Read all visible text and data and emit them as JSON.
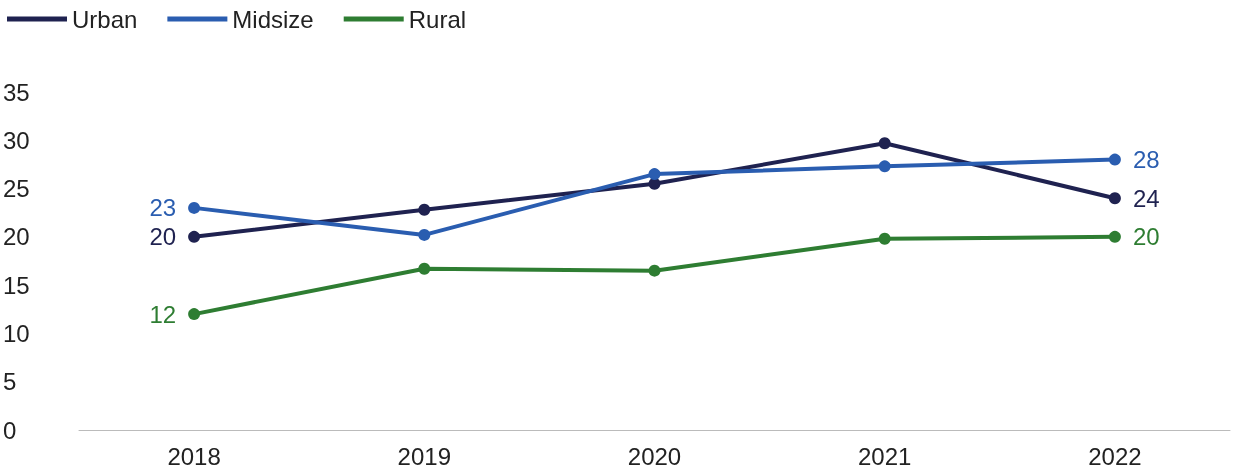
{
  "chart_data": {
    "type": "line",
    "categories": [
      "2018",
      "2019",
      "2020",
      "2021",
      "2022"
    ],
    "series": [
      {
        "name": "Urban",
        "color": "#1f2250",
        "values": [
          20,
          22.8,
          25.5,
          29.7,
          24
        ],
        "value_labels": [
          "20",
          null,
          null,
          null,
          "24"
        ]
      },
      {
        "name": "Midsize",
        "color": "#2a5db0",
        "values": [
          23,
          20.2,
          26.5,
          27.3,
          28
        ],
        "value_labels": [
          "23",
          null,
          null,
          null,
          "28"
        ]
      },
      {
        "name": "Rural",
        "color": "#2e7d32",
        "values": [
          12,
          16.7,
          16.5,
          19.8,
          20
        ],
        "value_labels": [
          "12",
          null,
          null,
          null,
          "20"
        ]
      }
    ],
    "ylim": [
      0,
      35
    ],
    "yticks": [
      0,
      5,
      10,
      15,
      20,
      25,
      30,
      35
    ],
    "grid": false,
    "legend": "top left",
    "marker": "circle",
    "line_style": "solid"
  }
}
